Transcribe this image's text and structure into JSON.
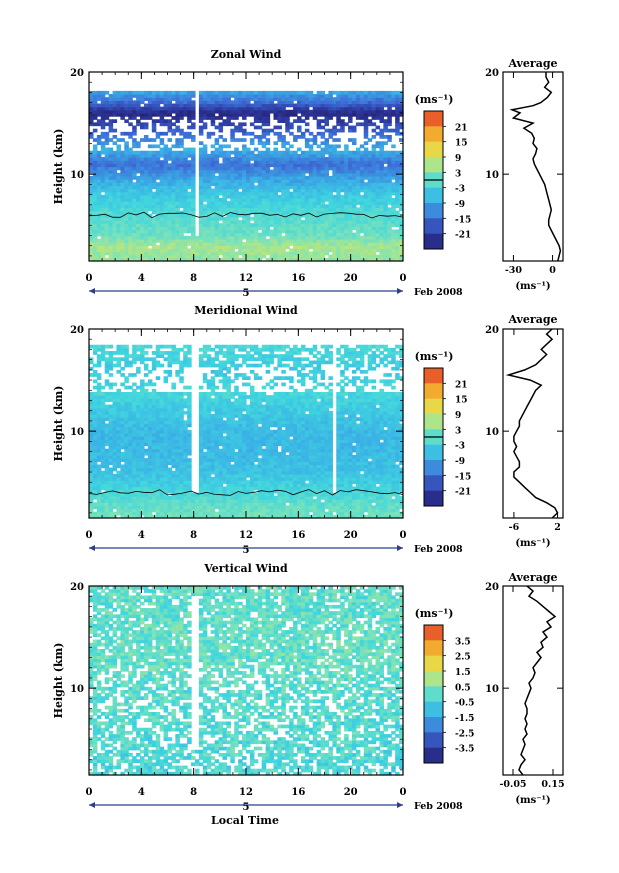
{
  "figure": {
    "xlabel": "Local Time",
    "date_label": "Feb 2008",
    "day_label": "5",
    "unit_label": "(ms⁻¹)",
    "avg_title": "Average"
  },
  "chart_data": [
    {
      "type": "heatmap",
      "title": "Zonal Wind",
      "xlabel": "",
      "ylabel": "Height (km)",
      "x_range": [
        0,
        24
      ],
      "x_ticks": [
        "0",
        "4",
        "8",
        "12",
        "16",
        "20",
        "0"
      ],
      "y_range": [
        1.5,
        20
      ],
      "y_ticks": [
        "10",
        "20"
      ],
      "colorbar": {
        "unit": "(ms⁻¹)",
        "range": [
          -24,
          24
        ],
        "ticks": [
          "21",
          "15",
          "9",
          "3",
          "-3",
          "-9",
          "-15",
          "-21"
        ],
        "zero_line": 0
      },
      "approx_profile": [
        {
          "z": 2,
          "v": 4
        },
        {
          "z": 3,
          "v": 5
        },
        {
          "z": 4,
          "v": 1
        },
        {
          "z": 6,
          "v": -1
        },
        {
          "z": 8,
          "v": -4
        },
        {
          "z": 9.5,
          "v": -8
        },
        {
          "z": 11,
          "v": -13
        },
        {
          "z": 12.5,
          "v": -7
        },
        {
          "z": 14,
          "v": -14
        },
        {
          "z": 16,
          "v": -22
        },
        {
          "z": 17,
          "v": -14
        },
        {
          "z": 18.5,
          "v": -6
        }
      ],
      "average": {
        "xlim": [
          -38,
          8
        ],
        "x_ticks": [
          {
            "v": -30,
            "label": "-30"
          },
          {
            "v": 0,
            "label": "0"
          }
        ],
        "xlabel": "(ms⁻¹)",
        "profile": [
          {
            "z": 1.5,
            "v": 4
          },
          {
            "z": 2,
            "v": 5
          },
          {
            "z": 2.5,
            "v": 6
          },
          {
            "z": 3,
            "v": 5
          },
          {
            "z": 3.5,
            "v": 3
          },
          {
            "z": 4,
            "v": 1
          },
          {
            "z": 4.5,
            "v": -1
          },
          {
            "z": 5,
            "v": -3
          },
          {
            "z": 5.5,
            "v": -3
          },
          {
            "z": 6,
            "v": -2
          },
          {
            "z": 6.5,
            "v": -1
          },
          {
            "z": 7,
            "v": -2
          },
          {
            "z": 7.5,
            "v": -3
          },
          {
            "z": 8,
            "v": -4
          },
          {
            "z": 8.5,
            "v": -5
          },
          {
            "z": 9,
            "v": -6
          },
          {
            "z": 9.5,
            "v": -8
          },
          {
            "z": 10,
            "v": -10
          },
          {
            "z": 10.5,
            "v": -12
          },
          {
            "z": 11,
            "v": -14
          },
          {
            "z": 11.5,
            "v": -15
          },
          {
            "z": 12,
            "v": -13
          },
          {
            "z": 12.5,
            "v": -12
          },
          {
            "z": 13,
            "v": -15
          },
          {
            "z": 13.5,
            "v": -14
          },
          {
            "z": 14,
            "v": -16
          },
          {
            "z": 14.5,
            "v": -22
          },
          {
            "z": 15,
            "v": -15
          },
          {
            "z": 15.5,
            "v": -30
          },
          {
            "z": 16,
            "v": -25
          },
          {
            "z": 16.3,
            "v": -31
          },
          {
            "z": 16.7,
            "v": -15
          },
          {
            "z": 17,
            "v": -9
          },
          {
            "z": 17.5,
            "v": -4
          },
          {
            "z": 18,
            "v": -1
          },
          {
            "z": 18.5,
            "v": -6
          },
          {
            "z": 19,
            "v": -3
          },
          {
            "z": 19.5,
            "v": -5
          },
          {
            "z": 20,
            "v": -5
          }
        ]
      }
    },
    {
      "type": "heatmap",
      "title": "Meridional Wind",
      "xlabel": "",
      "ylabel": "Height (km)",
      "x_range": [
        0,
        24
      ],
      "x_ticks": [
        "0",
        "4",
        "8",
        "12",
        "16",
        "20",
        "0"
      ],
      "y_range": [
        1.5,
        20
      ],
      "y_ticks": [
        "10",
        "20"
      ],
      "colorbar": {
        "unit": "(ms⁻¹)",
        "range": [
          -24,
          24
        ],
        "ticks": [
          "21",
          "15",
          "9",
          "3",
          "-3",
          "-9",
          "-15",
          "-21"
        ],
        "zero_line": 0
      },
      "approx_profile": [
        {
          "z": 2,
          "v": 1
        },
        {
          "z": 3,
          "v": 0
        },
        {
          "z": 4,
          "v": -2
        },
        {
          "z": 6,
          "v": -5
        },
        {
          "z": 8,
          "v": -6
        },
        {
          "z": 10,
          "v": -6
        },
        {
          "z": 12,
          "v": -4
        },
        {
          "z": 14,
          "v": -2
        },
        {
          "z": 16,
          "v": -4
        },
        {
          "z": 18,
          "v": -2
        }
      ],
      "average": {
        "xlim": [
          -8,
          3
        ],
        "x_ticks": [
          {
            "v": -6,
            "label": "-6"
          },
          {
            "v": 2,
            "label": "2"
          }
        ],
        "xlabel": "(ms⁻¹)",
        "profile": [
          {
            "z": 1.5,
            "v": 1
          },
          {
            "z": 2,
            "v": 2
          },
          {
            "z": 2.5,
            "v": 1.5
          },
          {
            "z": 3,
            "v": 0
          },
          {
            "z": 3.5,
            "v": -2
          },
          {
            "z": 4,
            "v": -3
          },
          {
            "z": 4.5,
            "v": -4
          },
          {
            "z": 5,
            "v": -5
          },
          {
            "z": 5.5,
            "v": -6
          },
          {
            "z": 6,
            "v": -6
          },
          {
            "z": 6.5,
            "v": -5
          },
          {
            "z": 7,
            "v": -5
          },
          {
            "z": 7.5,
            "v": -5.5
          },
          {
            "z": 8,
            "v": -6
          },
          {
            "z": 8.5,
            "v": -5.5
          },
          {
            "z": 9,
            "v": -6
          },
          {
            "z": 9.5,
            "v": -6
          },
          {
            "z": 10,
            "v": -5.5
          },
          {
            "z": 10.5,
            "v": -5
          },
          {
            "z": 11,
            "v": -5
          },
          {
            "z": 11.5,
            "v": -4.5
          },
          {
            "z": 12,
            "v": -4
          },
          {
            "z": 12.5,
            "v": -3.5
          },
          {
            "z": 13,
            "v": -3
          },
          {
            "z": 13.5,
            "v": -2.5
          },
          {
            "z": 14,
            "v": -2
          },
          {
            "z": 14.5,
            "v": -1
          },
          {
            "z": 15,
            "v": -3
          },
          {
            "z": 15.5,
            "v": -7
          },
          {
            "z": 16,
            "v": -4
          },
          {
            "z": 16.5,
            "v": -2
          },
          {
            "z": 17,
            "v": -1
          },
          {
            "z": 17.5,
            "v": 0
          },
          {
            "z": 18,
            "v": -1
          },
          {
            "z": 18.5,
            "v": 0
          },
          {
            "z": 19,
            "v": 1
          },
          {
            "z": 19.5,
            "v": 0
          },
          {
            "z": 20,
            "v": 1
          }
        ]
      }
    },
    {
      "type": "heatmap",
      "title": "Vertical Wind",
      "xlabel": "Local Time",
      "ylabel": "Height (km)",
      "x_range": [
        0,
        24
      ],
      "x_ticks": [
        "0",
        "4",
        "8",
        "12",
        "16",
        "20",
        "0"
      ],
      "y_range": [
        1.5,
        20
      ],
      "y_ticks": [
        "10",
        "20"
      ],
      "colorbar": {
        "unit": "(ms⁻¹)",
        "range": [
          -4,
          4
        ],
        "ticks": [
          "3.5",
          "2.5",
          "1.5",
          "0.5",
          "-0.5",
          "-1.5",
          "-2.5",
          "-3.5"
        ],
        "zero_line": null
      },
      "approx_profile": [
        {
          "z": 2,
          "v": -0.3
        },
        {
          "z": 5,
          "v": -0.2
        },
        {
          "z": 8,
          "v": -0.1
        },
        {
          "z": 11,
          "v": 0
        },
        {
          "z": 14,
          "v": 0.1
        },
        {
          "z": 18,
          "v": 0
        }
      ],
      "average": {
        "xlim": [
          -0.1,
          0.2
        ],
        "x_ticks": [
          {
            "v": -0.05,
            "label": "-0.05"
          },
          {
            "v": 0.15,
            "label": "0.15"
          }
        ],
        "xlabel": "(ms⁻¹)",
        "profile": [
          {
            "z": 1.5,
            "v": 0
          },
          {
            "z": 2,
            "v": -0.02
          },
          {
            "z": 2.5,
            "v": -0.01
          },
          {
            "z": 3,
            "v": 0.01
          },
          {
            "z": 3.5,
            "v": -0.01
          },
          {
            "z": 4,
            "v": 0
          },
          {
            "z": 4.5,
            "v": 0.01
          },
          {
            "z": 5,
            "v": 0
          },
          {
            "z": 5.5,
            "v": 0.02
          },
          {
            "z": 6,
            "v": 0.01
          },
          {
            "z": 6.5,
            "v": 0.02
          },
          {
            "z": 7,
            "v": 0.01
          },
          {
            "z": 7.5,
            "v": 0.02
          },
          {
            "z": 8,
            "v": 0.02
          },
          {
            "z": 8.5,
            "v": 0.01
          },
          {
            "z": 9,
            "v": 0.02
          },
          {
            "z": 9.5,
            "v": 0.03
          },
          {
            "z": 10,
            "v": 0.04
          },
          {
            "z": 10.5,
            "v": 0.03
          },
          {
            "z": 11,
            "v": 0.05
          },
          {
            "z": 11.5,
            "v": 0.06
          },
          {
            "z": 12,
            "v": 0.05
          },
          {
            "z": 12.5,
            "v": 0.07
          },
          {
            "z": 13,
            "v": 0.09
          },
          {
            "z": 13.5,
            "v": 0.07
          },
          {
            "z": 14,
            "v": 0.1
          },
          {
            "z": 14.5,
            "v": 0.09
          },
          {
            "z": 15,
            "v": 0.12
          },
          {
            "z": 15.5,
            "v": 0.1
          },
          {
            "z": 16,
            "v": 0.14
          },
          {
            "z": 16.5,
            "v": 0.12
          },
          {
            "z": 17,
            "v": 0.16
          },
          {
            "z": 17.5,
            "v": 0.13
          },
          {
            "z": 18,
            "v": 0.1
          },
          {
            "z": 18.5,
            "v": 0.07
          },
          {
            "z": 19,
            "v": 0.03
          },
          {
            "z": 19.5,
            "v": 0.05
          },
          {
            "z": 20,
            "v": 0.02
          }
        ]
      }
    }
  ]
}
